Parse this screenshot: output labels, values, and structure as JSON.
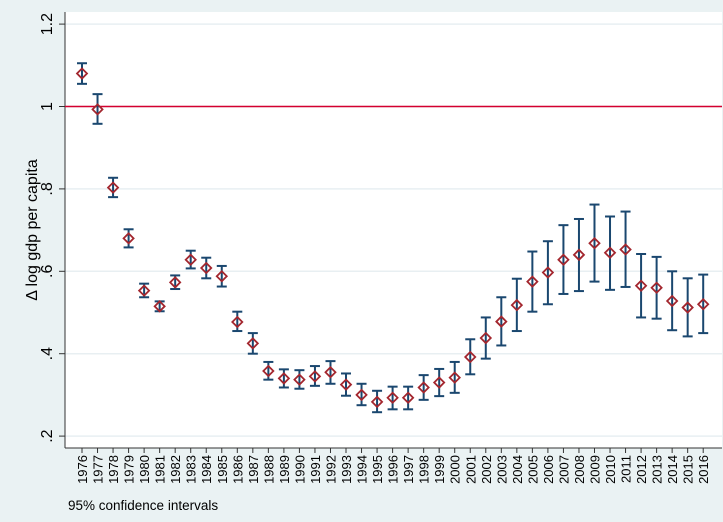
{
  "chart_data": {
    "type": "scatter",
    "subtype": "point estimates with 95% confidence interval capped spikes",
    "title": "",
    "xlabel": "",
    "ylabel": "Δ log gdp per capita",
    "note": "95% confidence intervals",
    "ylim": [
      0.2,
      1.2
    ],
    "yticks": [
      0.2,
      0.4,
      0.6,
      0.8,
      1,
      1.2
    ],
    "ytick_labels": [
      ".2",
      ".4",
      ".6",
      ".8",
      "1",
      "1.2"
    ],
    "reference_line": {
      "y": 1,
      "color": "#d4002f"
    },
    "grid": true,
    "colors": {
      "background": "#eaf2f3",
      "plot": "#ffffff",
      "marker": "#a3262e",
      "ci": "#1a476f",
      "grid": "#e8eff2"
    },
    "categories": [
      "1976",
      "1977",
      "1978",
      "1979",
      "1980",
      "1981",
      "1982",
      "1983",
      "1984",
      "1985",
      "1986",
      "1987",
      "1988",
      "1989",
      "1990",
      "1991",
      "1992",
      "1993",
      "1994",
      "1995",
      "1996",
      "1997",
      "1998",
      "1999",
      "2000",
      "2001",
      "2002",
      "2003",
      "2004",
      "2005",
      "2006",
      "2007",
      "2008",
      "2009",
      "2010",
      "2011",
      "2012",
      "2013",
      "2014",
      "2015",
      "2016"
    ],
    "values": [
      1.08,
      0.993,
      0.803,
      0.68,
      0.553,
      0.515,
      0.573,
      0.628,
      0.608,
      0.588,
      0.477,
      0.425,
      0.358,
      0.34,
      0.337,
      0.345,
      0.355,
      0.325,
      0.3,
      0.283,
      0.293,
      0.293,
      0.318,
      0.33,
      0.342,
      0.392,
      0.438,
      0.478,
      0.518,
      0.575,
      0.597,
      0.628,
      0.64,
      0.668,
      0.645,
      0.653,
      0.565,
      0.56,
      0.528,
      0.512,
      0.52
    ],
    "ci_low": [
      1.055,
      0.958,
      0.78,
      0.658,
      0.537,
      0.503,
      0.557,
      0.607,
      0.583,
      0.563,
      0.455,
      0.4,
      0.337,
      0.318,
      0.315,
      0.322,
      0.327,
      0.298,
      0.275,
      0.258,
      0.265,
      0.265,
      0.288,
      0.297,
      0.305,
      0.35,
      0.388,
      0.42,
      0.455,
      0.502,
      0.52,
      0.545,
      0.552,
      0.575,
      0.555,
      0.562,
      0.488,
      0.485,
      0.457,
      0.442,
      0.45
    ],
    "ci_high": [
      1.105,
      1.03,
      0.827,
      0.702,
      0.57,
      0.527,
      0.59,
      0.65,
      0.633,
      0.613,
      0.502,
      0.45,
      0.38,
      0.362,
      0.36,
      0.37,
      0.382,
      0.352,
      0.327,
      0.31,
      0.32,
      0.32,
      0.348,
      0.363,
      0.38,
      0.435,
      0.488,
      0.537,
      0.582,
      0.648,
      0.673,
      0.712,
      0.727,
      0.762,
      0.733,
      0.745,
      0.642,
      0.635,
      0.6,
      0.583,
      0.592
    ]
  }
}
